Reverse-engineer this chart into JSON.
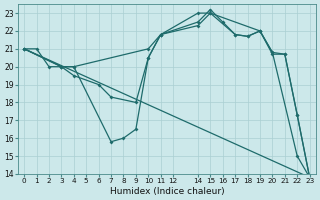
{
  "xlabel": "Humidex (Indice chaleur)",
  "background_color": "#cce8ea",
  "line_color": "#1e6b6b",
  "grid_color": "#aacfd2",
  "xlim": [
    -0.5,
    23.5
  ],
  "ylim": [
    14,
    23.5
  ],
  "xticks": [
    0,
    1,
    2,
    3,
    4,
    5,
    6,
    7,
    8,
    9,
    10,
    11,
    12,
    14,
    15,
    16,
    17,
    18,
    19,
    20,
    21,
    22,
    23
  ],
  "yticks": [
    14,
    15,
    16,
    17,
    18,
    19,
    20,
    21,
    22,
    23
  ],
  "lines": [
    {
      "x": [
        0,
        23
      ],
      "y": [
        21,
        13.8
      ],
      "markers": false
    },
    {
      "x": [
        0,
        1,
        2,
        3,
        4,
        10,
        11,
        14,
        15,
        19,
        20,
        21,
        22,
        23
      ],
      "y": [
        21,
        21,
        20,
        20,
        20,
        21,
        21.8,
        23,
        23,
        22,
        20.7,
        20.7,
        17.3,
        13.8
      ],
      "markers": true
    },
    {
      "comment": "line3: starts 21, dips to x=3(20), x=4(19.5), x=6(19), x=7(18.3), x=9(18), rises to 10(20.5),11(21.8), 14(22.5),15(23.2), 16(22.5),17(21.8),18(21.7),19(22),20(20.8), then 22(15), 23(13.8)",
      "x": [
        0,
        3,
        4,
        6,
        7,
        9,
        10,
        11,
        14,
        15,
        16,
        17,
        18,
        19,
        20,
        22,
        23
      ],
      "y": [
        21,
        20,
        19.5,
        19,
        18.3,
        18,
        20.5,
        21.8,
        22.5,
        23.2,
        22.5,
        21.8,
        21.7,
        22,
        20.8,
        15,
        13.8
      ],
      "markers": true
    },
    {
      "comment": "line4: starts 21, dips to 3(20),4(20),7(15.8),8(16),9(16.5), rises to 10(20.5),11(21.8),14(22.3),15(23),17(21.8),18(21.7),19(22),20(20.8),21(20.7),22(17.3),23(13.8)",
      "x": [
        0,
        3,
        4,
        7,
        8,
        9,
        10,
        11,
        14,
        15,
        17,
        18,
        19,
        20,
        21,
        22,
        23
      ],
      "y": [
        21,
        20,
        20,
        15.8,
        16,
        16.5,
        20.5,
        21.8,
        22.3,
        23,
        21.8,
        21.7,
        22,
        20.8,
        20.7,
        17.3,
        13.8
      ],
      "markers": true
    }
  ]
}
